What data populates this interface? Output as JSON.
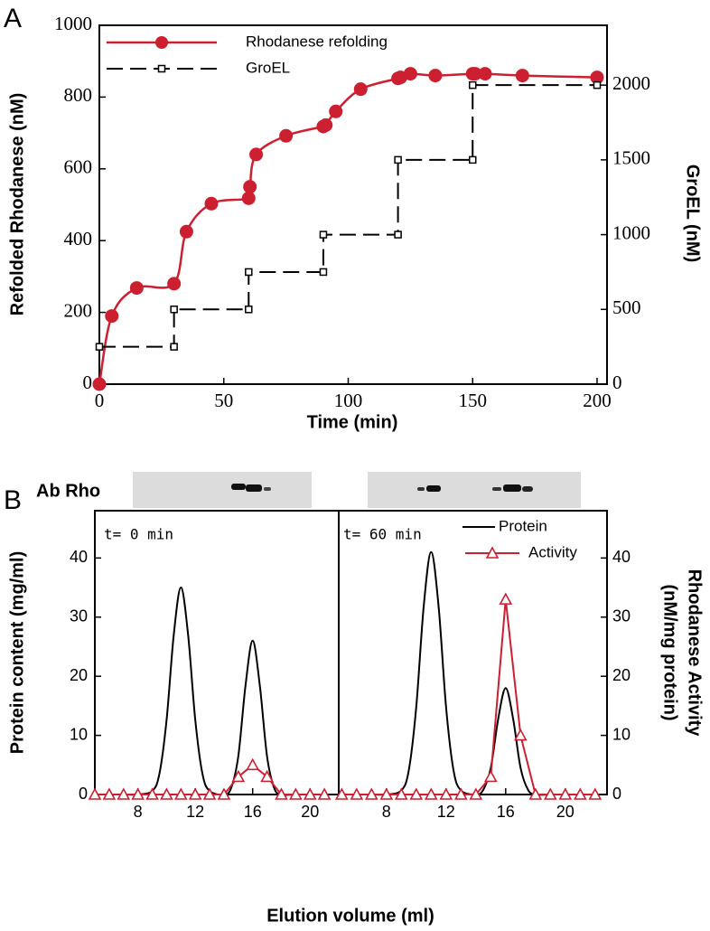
{
  "chart_data": [
    {
      "type": "line",
      "panel": "A",
      "xlabel": "Time (min)",
      "ylabel": "Refolded Rhodanese (nM)",
      "y2label": "GroEL (nM)",
      "xlim": [
        0,
        204
      ],
      "xticks": [
        0,
        50,
        100,
        150,
        200
      ],
      "ylim": [
        0,
        1000
      ],
      "yticks": [
        0,
        200,
        400,
        600,
        800,
        1000
      ],
      "y2lim": [
        0,
        2400
      ],
      "y2ticks": [
        0,
        500,
        1000,
        1500,
        2000
      ],
      "series": [
        {
          "name": "Rhodanese refolding",
          "color": "#cc1f2f",
          "marker": "circle",
          "linestyle": "solid",
          "smooth": true,
          "x": [
            0,
            5,
            15,
            30,
            35,
            45,
            60,
            60.5,
            63,
            75,
            90,
            91,
            95,
            105,
            120,
            121,
            125,
            135,
            150,
            151,
            155,
            170,
            200
          ],
          "values": [
            0,
            190,
            268,
            280,
            425,
            503,
            518,
            550,
            640,
            692,
            718,
            722,
            760,
            822,
            852,
            855,
            865,
            860,
            865,
            865,
            865,
            860,
            855
          ]
        },
        {
          "name": "GroEL",
          "color": "#000000",
          "marker": "square",
          "linestyle": "dashed",
          "axis": "y2",
          "x": [
            0,
            30,
            30,
            60,
            60,
            90,
            90,
            120,
            120,
            150,
            150,
            200
          ],
          "values": [
            250,
            250,
            500,
            500,
            750,
            750,
            1000,
            1000,
            1500,
            1500,
            2000,
            2000
          ]
        }
      ]
    },
    {
      "type": "line",
      "panel": "B",
      "blot_label": "Ab Rho",
      "annotation": "t= 0 min",
      "xlabel": "Elution volume (ml)",
      "ylabel": "Protein content (mg/ml)",
      "xlim": [
        5,
        22
      ],
      "xticks": [
        8,
        12,
        16,
        20
      ],
      "ylim": [
        0,
        48
      ],
      "yticks": [
        0,
        10,
        20,
        30,
        40
      ],
      "series": [
        {
          "color": "#000000",
          "marker": "none",
          "linestyle": "solid",
          "smooth": true,
          "x": [
            5,
            6,
            7,
            8,
            9,
            9.5,
            10,
            10.5,
            11,
            11.5,
            12,
            12.5,
            13,
            14,
            14.5,
            15,
            15.5,
            16,
            16.5,
            17,
            17.5,
            18,
            19,
            20,
            21,
            22
          ],
          "values": [
            0,
            0,
            0,
            0,
            0.6,
            3.5,
            12.6,
            27,
            35,
            27,
            12.6,
            3.5,
            0.6,
            0,
            1.1,
            6.5,
            18.4,
            26,
            18.4,
            6.5,
            1.1,
            0,
            0,
            0,
            0,
            0
          ]
        },
        {
          "color": "#cc1f2f",
          "marker": "triangle",
          "linestyle": "solid",
          "x": [
            5,
            6,
            7,
            8,
            9,
            10,
            11,
            12,
            13,
            14,
            15,
            16,
            17,
            18,
            19,
            20,
            21
          ],
          "values": [
            0,
            0,
            0,
            0,
            0,
            0,
            0,
            0,
            0,
            0,
            3,
            5,
            3,
            0,
            0,
            0,
            0
          ]
        }
      ]
    },
    {
      "type": "line",
      "annotation": "t= 60 min",
      "y2label": [
        "Rhodanese Activity",
        "(nM/mg protein)"
      ],
      "xlim": [
        4.8,
        22.8
      ],
      "xticks": [
        8,
        12,
        16,
        20
      ],
      "y2lim": [
        0,
        48
      ],
      "y2ticks": [
        0,
        10,
        20,
        30,
        40
      ],
      "series": [
        {
          "name": "Protein",
          "color": "#000000",
          "marker": "none",
          "linestyle": "solid",
          "smooth": true,
          "axis": "y2",
          "x": [
            5,
            6,
            7,
            8,
            9,
            9.5,
            10,
            10.5,
            11,
            11.5,
            12,
            12.5,
            13,
            14,
            14.5,
            15,
            15.5,
            16,
            16.5,
            17,
            17.5,
            18,
            19,
            20,
            21,
            22
          ],
          "values": [
            0,
            0,
            0,
            0,
            0.7,
            4.1,
            14.8,
            31.8,
            41,
            31.8,
            14.8,
            4.1,
            0.7,
            0,
            0.8,
            4.5,
            12.8,
            18,
            12.8,
            4.5,
            0.8,
            0,
            0,
            0,
            0,
            0
          ]
        },
        {
          "name": "Activity",
          "color": "#cc1f2f",
          "marker": "triangle",
          "linestyle": "solid",
          "axis": "y2",
          "x": [
            5,
            6,
            7,
            8,
            9,
            10,
            11,
            12,
            13,
            14,
            15,
            16,
            17,
            18,
            19,
            20,
            21,
            22
          ],
          "values": [
            0,
            0,
            0,
            0,
            0,
            0,
            0,
            0,
            0,
            0,
            3,
            33,
            10,
            0,
            0,
            0,
            0,
            0
          ]
        }
      ]
    }
  ]
}
